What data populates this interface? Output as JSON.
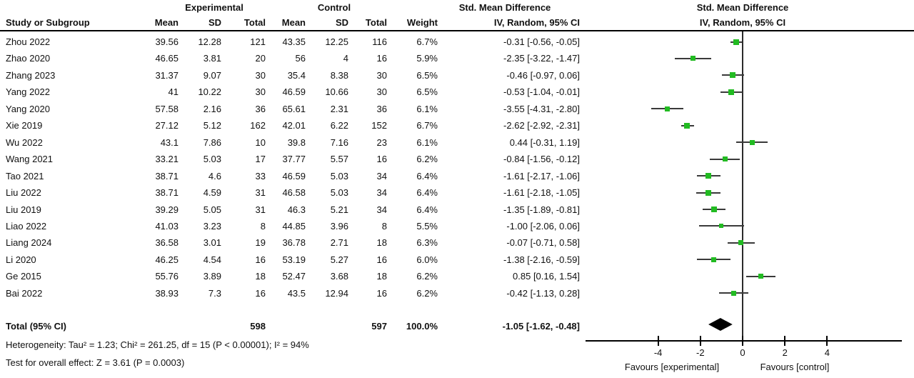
{
  "table": {
    "header": {
      "group_experimental": "Experimental",
      "group_control": "Control",
      "smd_title_left": "Std. Mean Difference",
      "smd_title_right": "Std. Mean Difference",
      "study": "Study or Subgroup",
      "mean1": "Mean",
      "sd1": "SD",
      "total1": "Total",
      "mean2": "Mean",
      "sd2": "SD",
      "total2": "Total",
      "weight": "Weight",
      "ci_method_left": "IV, Random, 95% CI",
      "ci_method_right": "IV, Random, 95% CI"
    },
    "rows": [
      {
        "study": "Zhou 2022",
        "mean1": "39.56",
        "sd1": "12.28",
        "total1": "121",
        "mean2": "43.35",
        "sd2": "12.25",
        "total2": "116",
        "weight": "6.7%",
        "ci_text": "-0.31 [-0.56, -0.05]"
      },
      {
        "study": "Zhao 2020",
        "mean1": "46.65",
        "sd1": "3.81",
        "total1": "20",
        "mean2": "56",
        "sd2": "4",
        "total2": "16",
        "weight": "5.9%",
        "ci_text": "-2.35 [-3.22, -1.47]"
      },
      {
        "study": "Zhang 2023",
        "mean1": "31.37",
        "sd1": "9.07",
        "total1": "30",
        "mean2": "35.4",
        "sd2": "8.38",
        "total2": "30",
        "weight": "6.5%",
        "ci_text": "-0.46 [-0.97, 0.06]"
      },
      {
        "study": "Yang 2022",
        "mean1": "41",
        "sd1": "10.22",
        "total1": "30",
        "mean2": "46.59",
        "sd2": "10.66",
        "total2": "30",
        "weight": "6.5%",
        "ci_text": "-0.53 [-1.04, -0.01]"
      },
      {
        "study": "Yang 2020",
        "mean1": "57.58",
        "sd1": "2.16",
        "total1": "36",
        "mean2": "65.61",
        "sd2": "2.31",
        "total2": "36",
        "weight": "6.1%",
        "ci_text": "-3.55 [-4.31, -2.80]"
      },
      {
        "study": "Xie 2019",
        "mean1": "27.12",
        "sd1": "5.12",
        "total1": "162",
        "mean2": "42.01",
        "sd2": "6.22",
        "total2": "152",
        "weight": "6.7%",
        "ci_text": "-2.62 [-2.92, -2.31]"
      },
      {
        "study": "Wu 2022",
        "mean1": "43.1",
        "sd1": "7.86",
        "total1": "10",
        "mean2": "39.8",
        "sd2": "7.16",
        "total2": "23",
        "weight": "6.1%",
        "ci_text": "0.44 [-0.31, 1.19]"
      },
      {
        "study": "Wang 2021",
        "mean1": "33.21",
        "sd1": "5.03",
        "total1": "17",
        "mean2": "37.77",
        "sd2": "5.57",
        "total2": "16",
        "weight": "6.2%",
        "ci_text": "-0.84 [-1.56, -0.12]"
      },
      {
        "study": "Tao 2021",
        "mean1": "38.71",
        "sd1": "4.6",
        "total1": "33",
        "mean2": "46.59",
        "sd2": "5.03",
        "total2": "34",
        "weight": "6.4%",
        "ci_text": "-1.61 [-2.17, -1.06]"
      },
      {
        "study": "Liu 2022",
        "mean1": "38.71",
        "sd1": "4.59",
        "total1": "31",
        "mean2": "46.58",
        "sd2": "5.03",
        "total2": "34",
        "weight": "6.4%",
        "ci_text": "-1.61 [-2.18, -1.05]"
      },
      {
        "study": "Liu 2019",
        "mean1": "39.29",
        "sd1": "5.05",
        "total1": "31",
        "mean2": "46.3",
        "sd2": "5.21",
        "total2": "34",
        "weight": "6.4%",
        "ci_text": "-1.35 [-1.89, -0.81]"
      },
      {
        "study": "Liao 2022",
        "mean1": "41.03",
        "sd1": "3.23",
        "total1": "8",
        "mean2": "44.85",
        "sd2": "3.96",
        "total2": "8",
        "weight": "5.5%",
        "ci_text": "-1.00 [-2.06, 0.06]"
      },
      {
        "study": "Liang 2024",
        "mean1": "36.58",
        "sd1": "3.01",
        "total1": "19",
        "mean2": "36.78",
        "sd2": "2.71",
        "total2": "18",
        "weight": "6.3%",
        "ci_text": "-0.07 [-0.71, 0.58]"
      },
      {
        "study": "Li 2020",
        "mean1": "46.25",
        "sd1": "4.54",
        "total1": "16",
        "mean2": "53.19",
        "sd2": "5.27",
        "total2": "16",
        "weight": "6.0%",
        "ci_text": "-1.38 [-2.16, -0.59]"
      },
      {
        "study": "Ge 2015",
        "mean1": "55.76",
        "sd1": "3.89",
        "total1": "18",
        "mean2": "52.47",
        "sd2": "3.68",
        "total2": "18",
        "weight": "6.2%",
        "ci_text": "0.85 [0.16, 1.54]"
      },
      {
        "study": "Bai 2022",
        "mean1": "38.93",
        "sd1": "7.3",
        "total1": "16",
        "mean2": "43.5",
        "sd2": "12.94",
        "total2": "16",
        "weight": "6.2%",
        "ci_text": "-0.42 [-1.13, 0.28]"
      }
    ],
    "total_row": {
      "label": "Total (95% CI)",
      "total1": "598",
      "total2": "597",
      "weight": "100.0%",
      "ci_text": "-1.05 [-1.62, -0.48]"
    },
    "heterogeneity": "Heterogeneity: Tau² = 1.23; Chi² = 261.25, df = 15 (P < 0.00001); I² = 94%",
    "overall_effect": "Test for overall effect: Z = 3.61 (P = 0.0003)"
  },
  "chart_data": {
    "type": "forest",
    "effect_measure": "Std. Mean Difference",
    "model": "IV, Random, 95% CI",
    "studies": [
      {
        "name": "Zhou 2022",
        "est": -0.31,
        "lo": -0.56,
        "hi": -0.05,
        "weight": 6.7
      },
      {
        "name": "Zhao 2020",
        "est": -2.35,
        "lo": -3.22,
        "hi": -1.47,
        "weight": 5.9
      },
      {
        "name": "Zhang 2023",
        "est": -0.46,
        "lo": -0.97,
        "hi": 0.06,
        "weight": 6.5
      },
      {
        "name": "Yang 2022",
        "est": -0.53,
        "lo": -1.04,
        "hi": -0.01,
        "weight": 6.5
      },
      {
        "name": "Yang 2020",
        "est": -3.55,
        "lo": -4.31,
        "hi": -2.8,
        "weight": 6.1
      },
      {
        "name": "Xie 2019",
        "est": -2.62,
        "lo": -2.92,
        "hi": -2.31,
        "weight": 6.7
      },
      {
        "name": "Wu 2022",
        "est": 0.44,
        "lo": -0.31,
        "hi": 1.19,
        "weight": 6.1
      },
      {
        "name": "Wang 2021",
        "est": -0.84,
        "lo": -1.56,
        "hi": -0.12,
        "weight": 6.2
      },
      {
        "name": "Tao 2021",
        "est": -1.61,
        "lo": -2.17,
        "hi": -1.06,
        "weight": 6.4
      },
      {
        "name": "Liu 2022",
        "est": -1.61,
        "lo": -2.18,
        "hi": -1.05,
        "weight": 6.4
      },
      {
        "name": "Liu 2019",
        "est": -1.35,
        "lo": -1.89,
        "hi": -0.81,
        "weight": 6.4
      },
      {
        "name": "Liao 2022",
        "est": -1.0,
        "lo": -2.06,
        "hi": 0.06,
        "weight": 5.5
      },
      {
        "name": "Liang 2024",
        "est": -0.07,
        "lo": -0.71,
        "hi": 0.58,
        "weight": 6.3
      },
      {
        "name": "Li 2020",
        "est": -1.38,
        "lo": -2.16,
        "hi": -0.59,
        "weight": 6.0
      },
      {
        "name": "Ge 2015",
        "est": 0.85,
        "lo": 0.16,
        "hi": 1.54,
        "weight": 6.2
      },
      {
        "name": "Bai 2022",
        "est": -0.42,
        "lo": -1.13,
        "hi": 0.28,
        "weight": 6.2
      }
    ],
    "overall": {
      "est": -1.05,
      "lo": -1.62,
      "hi": -0.48,
      "weight": 100.0
    },
    "axis": {
      "ticks": [
        -4,
        -2,
        0,
        2,
        4
      ],
      "range": [
        -7.4,
        7.5
      ],
      "zero_line": true
    },
    "xlabel_left": "Favours [experimental]",
    "xlabel_right": "Favours [control]",
    "colors": {
      "marker": "#22bb22",
      "line": "#3a3a3a",
      "diamond": "#000000"
    }
  }
}
